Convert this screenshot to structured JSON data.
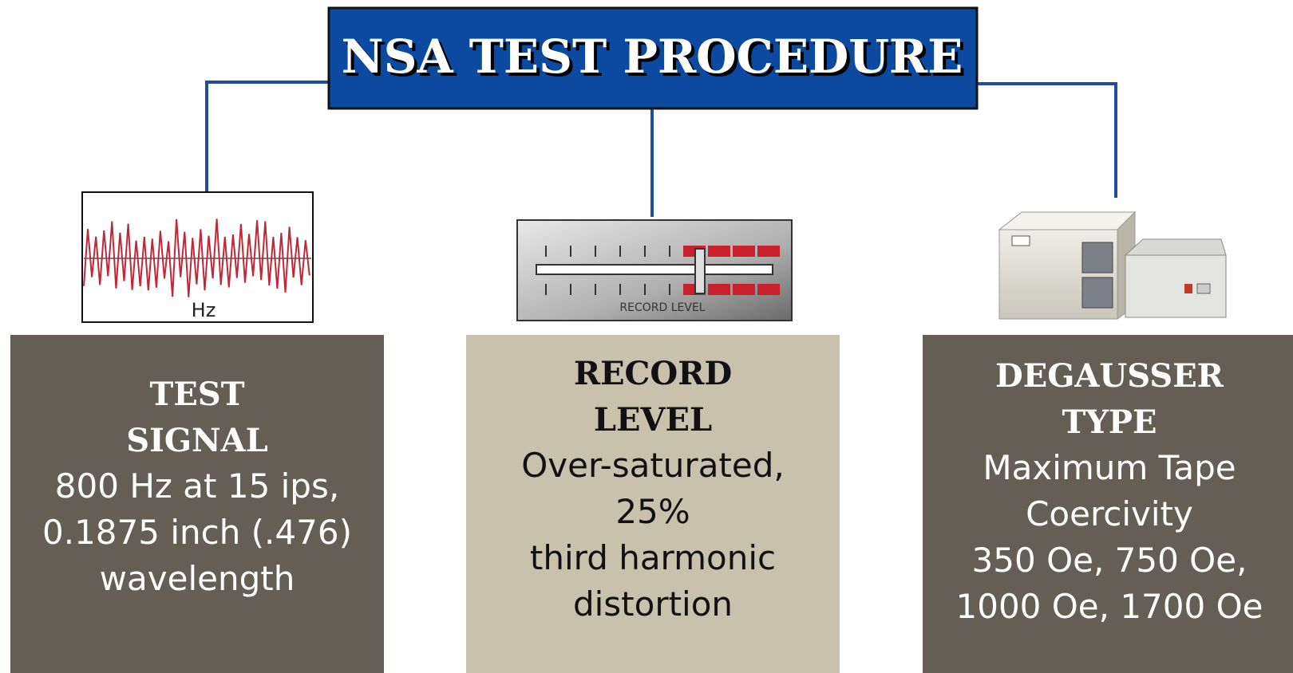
{
  "title": "NSA TEST PROCEDURE",
  "panels": [
    {
      "icon_label": "Hz",
      "heading": [
        "TEST",
        "SIGNAL"
      ],
      "body": [
        "800 Hz at 15 ips,",
        "0.1875 inch (.476)",
        "wavelength"
      ]
    },
    {
      "icon_label": "RECORD LEVEL",
      "heading": [
        "RECORD",
        "LEVEL"
      ],
      "body": [
        "Over-saturated,",
        "25%",
        "third harmonic",
        "distortion"
      ]
    },
    {
      "heading": [
        "DEGAUSSER",
        "TYPE"
      ],
      "body": [
        "Maximum Tape",
        "Coercivity",
        "350 Oe, 750 Oe,",
        "1000 Oe, 1700 Oe"
      ]
    }
  ]
}
